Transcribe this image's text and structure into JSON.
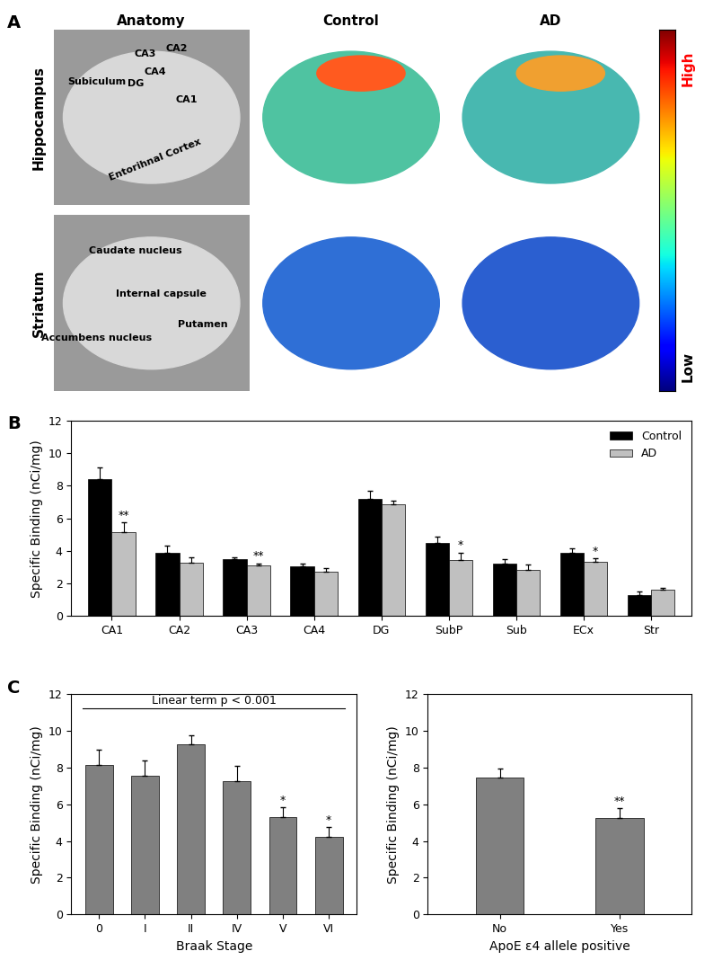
{
  "panel_labels": [
    "A",
    "B",
    "C"
  ],
  "panel_a": {
    "columns": [
      "Anatomy",
      "Control",
      "AD"
    ],
    "rows": [
      "Hippocampus",
      "Striatum"
    ],
    "anatomy_labels": {
      "Hippocampus": [
        "CA3",
        "CA2",
        "CA4",
        "DG",
        "Subiculum",
        "CA1",
        "Entorihnal Cortex"
      ],
      "Striatum": [
        "Caudate nucleus",
        "Internal capsule",
        "Accumbens nucleus",
        "Putamen"
      ]
    },
    "scale": {
      "high": "High",
      "low": "Low"
    }
  },
  "chart_data": [
    {
      "type": "bar",
      "categories": [
        "CA1",
        "CA2",
        "CA3",
        "CA4",
        "DG",
        "SubP",
        "Sub",
        "ECx",
        "Str"
      ],
      "ylabel": "Specific Binding (nCi/mg)",
      "ylim": [
        0,
        12
      ],
      "yticks": [
        0,
        2,
        4,
        6,
        8,
        10,
        12
      ],
      "legend": "upper right",
      "series": [
        {
          "name": "Control",
          "color": "#000000",
          "values": [
            8.4,
            3.9,
            3.5,
            3.05,
            7.2,
            4.5,
            3.25,
            3.9,
            1.3
          ],
          "error": [
            0.7,
            0.4,
            0.1,
            0.2,
            0.5,
            0.35,
            0.25,
            0.25,
            0.2
          ],
          "significance": [
            null,
            null,
            null,
            null,
            null,
            null,
            null,
            null,
            null
          ]
        },
        {
          "name": "AD",
          "color": "#c0c0c0",
          "values": [
            5.15,
            3.3,
            3.1,
            2.75,
            6.85,
            3.45,
            2.85,
            3.35,
            1.6
          ],
          "error": [
            0.6,
            0.3,
            0.15,
            0.2,
            0.25,
            0.45,
            0.3,
            0.2,
            0.15
          ],
          "significance": [
            "**",
            null,
            "**",
            null,
            null,
            "*",
            null,
            "*",
            null
          ]
        }
      ]
    },
    {
      "type": "bar",
      "categories": [
        "0",
        "I",
        "II",
        "IV",
        "V",
        "VI"
      ],
      "xlabel": "Braak Stage",
      "ylabel": "Specific Binding (nCi/mg)",
      "annotation": "Linear term p < 0.001",
      "color": "#808080",
      "values": [
        8.15,
        7.55,
        9.3,
        7.25,
        5.3,
        4.25
      ],
      "error": [
        0.85,
        0.85,
        0.45,
        0.85,
        0.55,
        0.5
      ],
      "significance": [
        null,
        null,
        null,
        null,
        "*",
        "*"
      ],
      "ylim": [
        0,
        12
      ],
      "yticks": [
        0,
        2,
        4,
        6,
        8,
        10,
        12
      ]
    },
    {
      "type": "bar",
      "categories": [
        "No",
        "Yes"
      ],
      "xlabel": "ApoE ε4 allele positive",
      "ylabel": "Specific Binding (nCi/mg)",
      "color": "#808080",
      "values": [
        7.45,
        5.25
      ],
      "error": [
        0.5,
        0.55
      ],
      "significance": [
        null,
        "**"
      ],
      "ylim": [
        0,
        12
      ],
      "yticks": [
        0,
        2,
        4,
        6,
        8,
        10,
        12
      ]
    }
  ]
}
